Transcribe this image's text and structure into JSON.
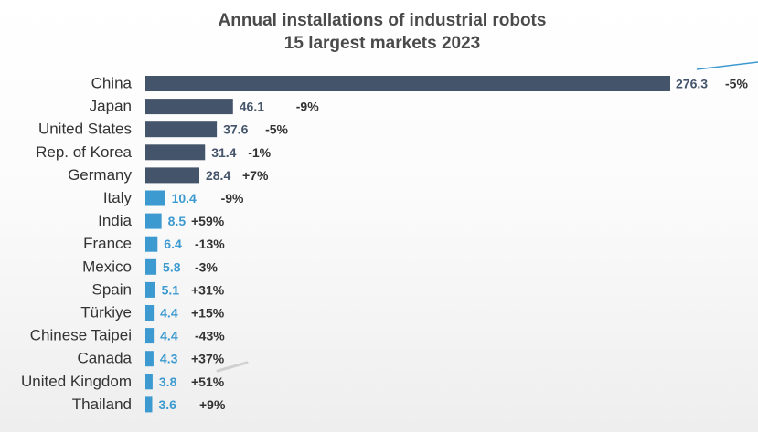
{
  "chart_data": {
    "type": "bar",
    "orientation": "horizontal",
    "title": "Annual installations of industrial robots",
    "subtitle": "15 largest markets 2023",
    "xlabel": "",
    "ylabel": "",
    "xlim": [
      0,
      276.3
    ],
    "grid": false,
    "legend": "none",
    "categories": [
      "China",
      "Japan",
      "United States",
      "Rep. of Korea",
      "Germany",
      "Italy",
      "India",
      "France",
      "Mexico",
      "Spain",
      "Türkiye",
      "Chinese Taipei",
      "Canada",
      "United Kingdom",
      "Thailand"
    ],
    "values": [
      276.3,
      46.1,
      37.6,
      31.4,
      28.4,
      10.4,
      8.5,
      6.4,
      5.8,
      5.1,
      4.4,
      4.4,
      4.3,
      3.8,
      3.6
    ],
    "value_labels": [
      "276.3",
      "46.1",
      "37.6",
      "31.4",
      "28.4",
      "10.4",
      "8.5",
      "6.4",
      "5.8",
      "5.1",
      "4.4",
      "4.4",
      "4.3",
      "3.8",
      "3.6"
    ],
    "change_labels": [
      "-5%",
      "-9%",
      "-5%",
      "-1%",
      "+7%",
      "-9%",
      "+59%",
      "-13%",
      "-3%",
      "+31%",
      "+15%",
      "-43%",
      "+37%",
      "+51%",
      "+9%"
    ],
    "colors": {
      "top_markets": "#44546a",
      "other_markets": "#3c9ad0",
      "text": "#333333",
      "title": "#4a4a4a",
      "value_light": "#3c9ad0",
      "value_dark": "#44546a",
      "value_on_bar": "#ffffff"
    }
  }
}
